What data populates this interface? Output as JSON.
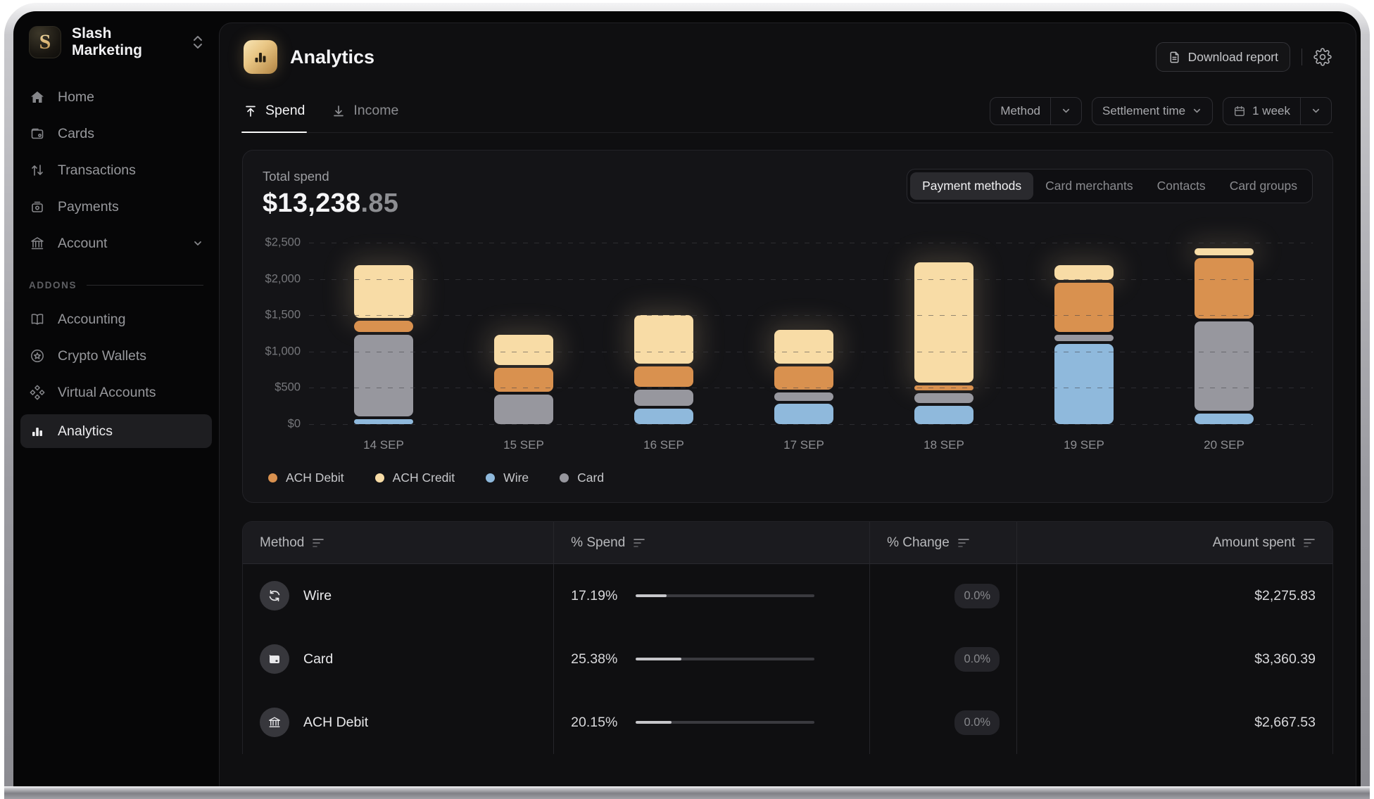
{
  "org": {
    "name": "Slash Marketing"
  },
  "sidebar": {
    "items": [
      {
        "label": "Home"
      },
      {
        "label": "Cards"
      },
      {
        "label": "Transactions"
      },
      {
        "label": "Payments"
      },
      {
        "label": "Account"
      }
    ],
    "addons_label": "ADDONS",
    "addon_items": [
      {
        "label": "Accounting"
      },
      {
        "label": "Crypto Wallets"
      },
      {
        "label": "Virtual Accounts"
      },
      {
        "label": "Analytics"
      }
    ]
  },
  "header": {
    "title": "Analytics",
    "download_label": "Download report"
  },
  "tabs": [
    {
      "label": "Spend"
    },
    {
      "label": "Income"
    }
  ],
  "filters": {
    "method": "Method",
    "settlement": "Settlement time",
    "range": "1 week"
  },
  "spend_card": {
    "total_label": "Total spend",
    "total_main": "$13,238",
    "total_cents": ".85",
    "toggles": [
      "Payment methods",
      "Card merchants",
      "Contacts",
      "Card groups"
    ],
    "active_toggle": "Payment methods"
  },
  "chart_data": {
    "type": "bar",
    "stacked": true,
    "title": "Total spend by payment method",
    "categories": [
      "14 SEP",
      "15 SEP",
      "16 SEP",
      "17 SEP",
      "18 SEP",
      "19 SEP",
      "20 SEP"
    ],
    "series": [
      {
        "name": "Wire",
        "color": "#8fb9dc",
        "values": [
          100,
          0,
          240,
          310,
          280,
          1135,
          175
        ]
      },
      {
        "name": "Card",
        "color": "#97979e",
        "values": [
          1150,
          440,
          250,
          150,
          165,
          120,
          1255
        ]
      },
      {
        "name": "ACH Debit",
        "color": "#d9914f",
        "values": [
          180,
          350,
          315,
          340,
          70,
          700,
          870
        ]
      },
      {
        "name": "ACH Credit",
        "color": "#f8dca6",
        "values": [
          760,
          450,
          700,
          500,
          1690,
          235,
          120
        ]
      }
    ],
    "legend": [
      {
        "name": "ACH Debit",
        "color": "#d9914f"
      },
      {
        "name": "ACH Credit",
        "color": "#f8dca6"
      },
      {
        "name": "Wire",
        "color": "#8fb9dc"
      },
      {
        "name": "Card",
        "color": "#97979e"
      }
    ],
    "y_ticks": [
      "$2,500",
      "$2,000",
      "$1,500",
      "$1,000",
      "$500",
      "$0"
    ],
    "ymax": 2500,
    "ylim": [
      0,
      2500
    ],
    "grid": "dashed-horizontal",
    "legend_position": "bottom"
  },
  "table": {
    "columns": [
      "Method",
      "% Spend",
      "% Change",
      "Amount spent"
    ],
    "rows": [
      {
        "method": "Wire",
        "pct_spend": "17.19%",
        "pct_value": 17.19,
        "pct_change": "0.0%",
        "amount": "$2,275.83"
      },
      {
        "method": "Card",
        "pct_spend": "25.38%",
        "pct_value": 25.38,
        "pct_change": "0.0%",
        "amount": "$3,360.39"
      },
      {
        "method": "ACH Debit",
        "pct_spend": "20.15%",
        "pct_value": 20.15,
        "pct_change": "0.0%",
        "amount": "$2,667.53"
      }
    ]
  }
}
